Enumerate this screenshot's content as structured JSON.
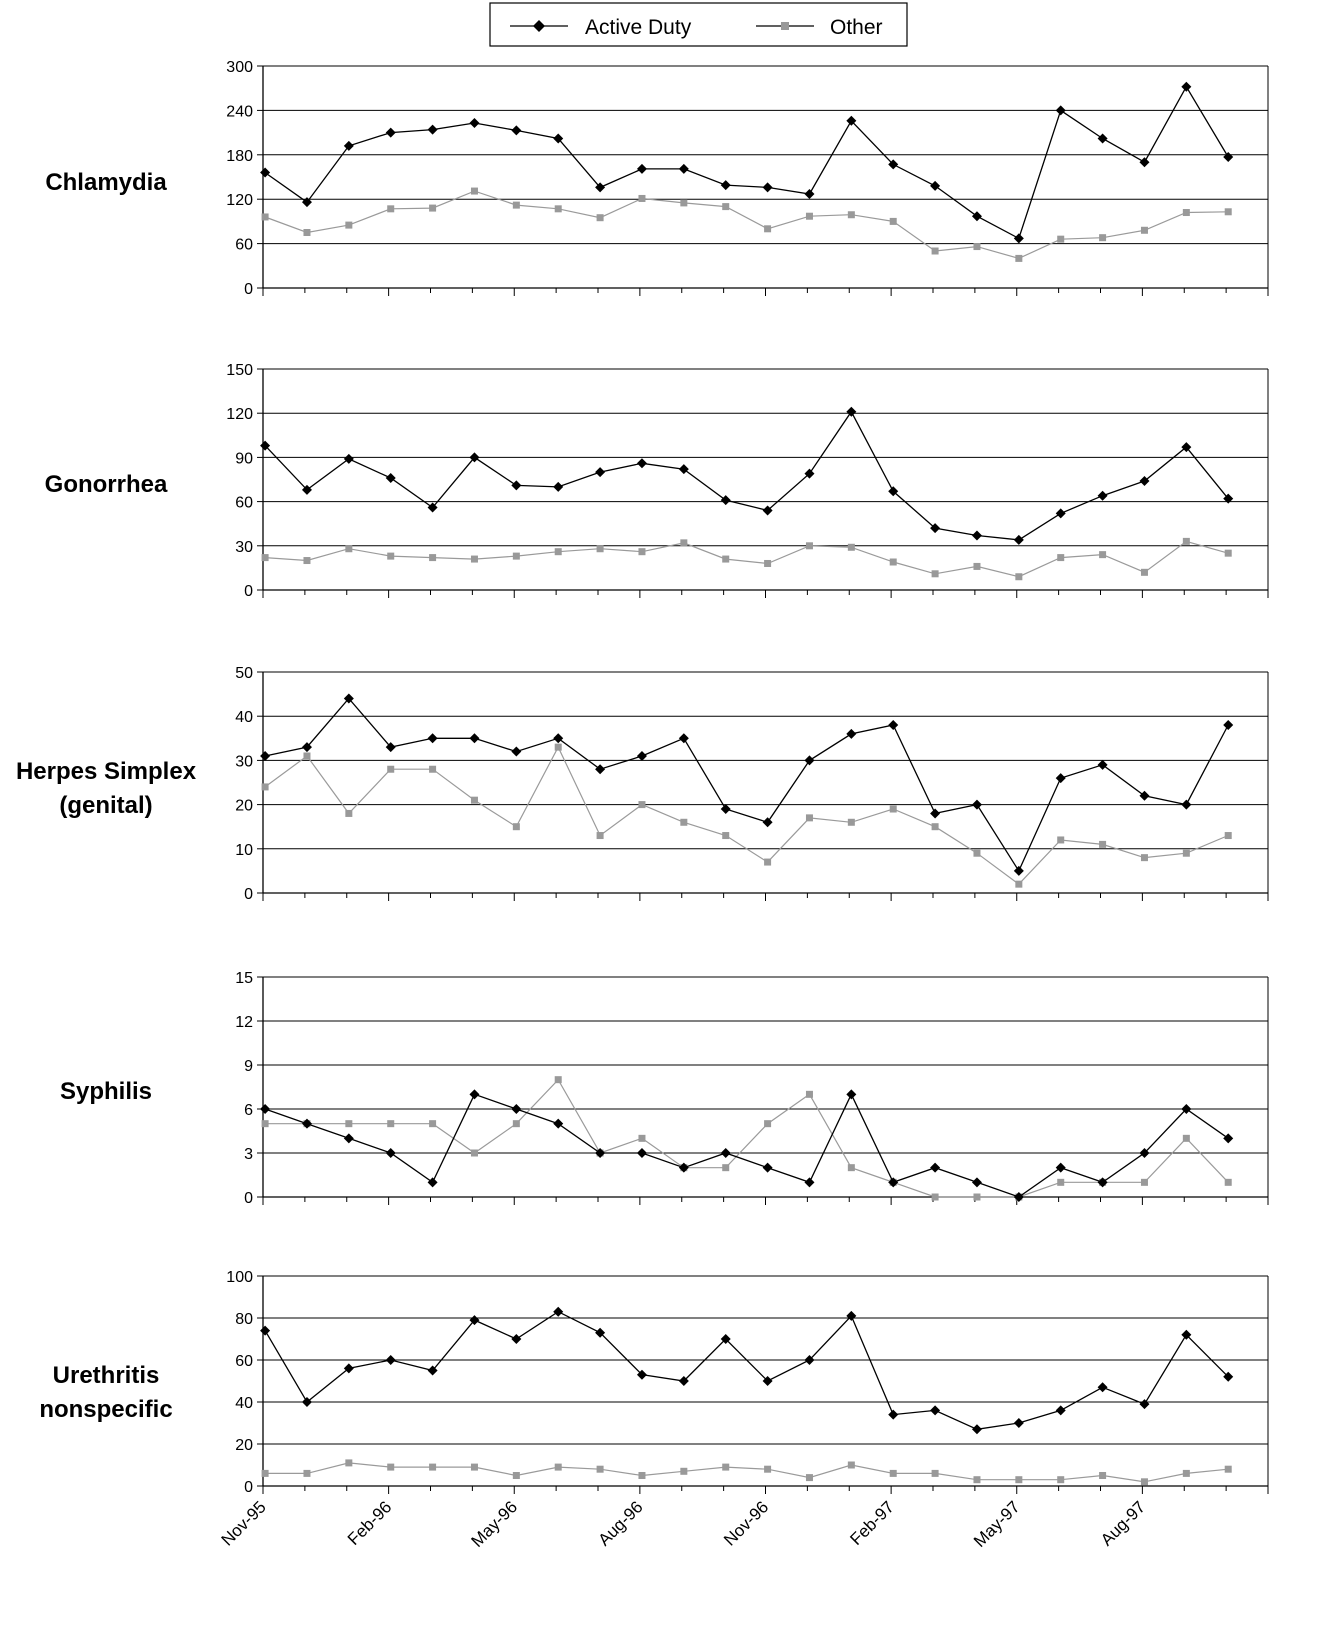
{
  "legend": {
    "position": "top-center",
    "items": [
      {
        "label": "Active Duty",
        "marker": "diamond",
        "color": "#000000"
      },
      {
        "label": "Other",
        "marker": "square",
        "color": "#999999"
      }
    ]
  },
  "x_tick_labels": [
    "Nov-95",
    "Feb-96",
    "May-96",
    "Aug-96",
    "Nov-96",
    "Feb-97",
    "May-97",
    "Aug-97"
  ],
  "chart_data": [
    {
      "type": "line",
      "title": "Chlamydia",
      "x": [
        "Nov-95",
        "Dec-95",
        "Jan-96",
        "Feb-96",
        "Mar-96",
        "Apr-96",
        "May-96",
        "Jun-96",
        "Jul-96",
        "Aug-96",
        "Sep-96",
        "Oct-96",
        "Nov-96",
        "Dec-96",
        "Jan-97",
        "Feb-97",
        "Mar-97",
        "Apr-97",
        "May-97",
        "Jun-97",
        "Jul-97",
        "Aug-97",
        "Sep-97",
        "Oct-97"
      ],
      "ylim": [
        0,
        300
      ],
      "yticks": [
        0,
        60,
        120,
        180,
        240,
        300
      ],
      "grid": true,
      "series": [
        {
          "name": "Active Duty",
          "values": [
            156,
            116,
            192,
            210,
            214,
            223,
            213,
            202,
            136,
            161,
            161,
            139,
            136,
            127,
            226,
            167,
            138,
            97,
            67,
            240,
            202,
            170,
            272,
            177
          ]
        },
        {
          "name": "Other",
          "values": [
            96,
            75,
            85,
            107,
            108,
            131,
            112,
            107,
            95,
            121,
            115,
            110,
            80,
            97,
            99,
            90,
            50,
            56,
            40,
            66,
            68,
            78,
            102,
            103
          ]
        }
      ]
    },
    {
      "type": "line",
      "title": "Gonorrhea",
      "x": [
        "Nov-95",
        "Dec-95",
        "Jan-96",
        "Feb-96",
        "Mar-96",
        "Apr-96",
        "May-96",
        "Jun-96",
        "Jul-96",
        "Aug-96",
        "Sep-96",
        "Oct-96",
        "Nov-96",
        "Dec-96",
        "Jan-97",
        "Feb-97",
        "Mar-97",
        "Apr-97",
        "May-97",
        "Jun-97",
        "Jul-97",
        "Aug-97",
        "Sep-97",
        "Oct-97"
      ],
      "ylim": [
        0,
        150
      ],
      "yticks": [
        0,
        30,
        60,
        90,
        120,
        150
      ],
      "grid": true,
      "series": [
        {
          "name": "Active Duty",
          "values": [
            98,
            68,
            89,
            76,
            56,
            90,
            71,
            70,
            80,
            86,
            82,
            61,
            54,
            79,
            121,
            67,
            42,
            37,
            34,
            52,
            64,
            74,
            97,
            62
          ]
        },
        {
          "name": "Other",
          "values": [
            22,
            20,
            28,
            23,
            22,
            21,
            23,
            26,
            28,
            26,
            32,
            21,
            18,
            30,
            29,
            19,
            11,
            16,
            9,
            22,
            24,
            12,
            33,
            25
          ]
        }
      ]
    },
    {
      "type": "line",
      "title": "Herpes Simplex (genital)",
      "title_lines": [
        "Herpes Simplex",
        "(genital)"
      ],
      "x": [
        "Nov-95",
        "Dec-95",
        "Jan-96",
        "Feb-96",
        "Mar-96",
        "Apr-96",
        "May-96",
        "Jun-96",
        "Jul-96",
        "Aug-96",
        "Sep-96",
        "Oct-96",
        "Nov-96",
        "Dec-96",
        "Jan-97",
        "Feb-97",
        "Mar-97",
        "Apr-97",
        "May-97",
        "Jun-97",
        "Jul-97",
        "Aug-97",
        "Sep-97",
        "Oct-97"
      ],
      "ylim": [
        0,
        50
      ],
      "yticks": [
        0,
        10,
        20,
        30,
        40,
        50
      ],
      "grid": true,
      "series": [
        {
          "name": "Active Duty",
          "values": [
            31,
            33,
            44,
            33,
            35,
            35,
            32,
            35,
            28,
            31,
            35,
            19,
            16,
            30,
            36,
            38,
            18,
            20,
            5,
            26,
            29,
            22,
            20,
            38
          ]
        },
        {
          "name": "Other",
          "values": [
            24,
            31,
            18,
            28,
            28,
            21,
            15,
            33,
            13,
            20,
            16,
            13,
            7,
            17,
            16,
            19,
            15,
            9,
            2,
            12,
            11,
            8,
            9,
            13
          ]
        }
      ]
    },
    {
      "type": "line",
      "title": "Syphilis",
      "x": [
        "Nov-95",
        "Dec-95",
        "Jan-96",
        "Feb-96",
        "Mar-96",
        "Apr-96",
        "May-96",
        "Jun-96",
        "Jul-96",
        "Aug-96",
        "Sep-96",
        "Oct-96",
        "Nov-96",
        "Dec-96",
        "Jan-97",
        "Feb-97",
        "Mar-97",
        "Apr-97",
        "May-97",
        "Jun-97",
        "Jul-97",
        "Aug-97",
        "Sep-97",
        "Oct-97"
      ],
      "ylim": [
        0,
        15
      ],
      "yticks": [
        0,
        3,
        6,
        9,
        12,
        15
      ],
      "grid": true,
      "series": [
        {
          "name": "Active Duty",
          "values": [
            6,
            5,
            4,
            3,
            1,
            7,
            6,
            5,
            3,
            3,
            2,
            3,
            2,
            1,
            7,
            1,
            2,
            1,
            0,
            2,
            1,
            3,
            6,
            4
          ]
        },
        {
          "name": "Other",
          "values": [
            5,
            5,
            5,
            5,
            5,
            3,
            5,
            8,
            3,
            4,
            2,
            2,
            5,
            7,
            2,
            1,
            0,
            0,
            0,
            1,
            1,
            1,
            4,
            1
          ]
        }
      ]
    },
    {
      "type": "line",
      "title": "Urethritis nonspecific",
      "title_lines": [
        "Urethritis",
        "nonspecific"
      ],
      "x": [
        "Nov-95",
        "Dec-95",
        "Jan-96",
        "Feb-96",
        "Mar-96",
        "Apr-96",
        "May-96",
        "Jun-96",
        "Jul-96",
        "Aug-96",
        "Sep-96",
        "Oct-96",
        "Nov-96",
        "Dec-96",
        "Jan-97",
        "Feb-97",
        "Mar-97",
        "Apr-97",
        "May-97",
        "Jun-97",
        "Jul-97",
        "Aug-97",
        "Sep-97",
        "Oct-97"
      ],
      "ylim": [
        0,
        100
      ],
      "yticks": [
        0,
        20,
        40,
        60,
        80,
        100
      ],
      "grid": true,
      "series": [
        {
          "name": "Active Duty",
          "values": [
            74,
            40,
            56,
            60,
            55,
            79,
            70,
            83,
            73,
            53,
            50,
            70,
            50,
            60,
            81,
            34,
            36,
            27,
            30,
            36,
            47,
            39,
            72,
            52
          ]
        },
        {
          "name": "Other",
          "values": [
            6,
            6,
            11,
            9,
            9,
            9,
            5,
            9,
            8,
            5,
            7,
            9,
            8,
            4,
            10,
            6,
            6,
            3,
            3,
            3,
            5,
            2,
            6,
            8
          ]
        }
      ]
    }
  ]
}
